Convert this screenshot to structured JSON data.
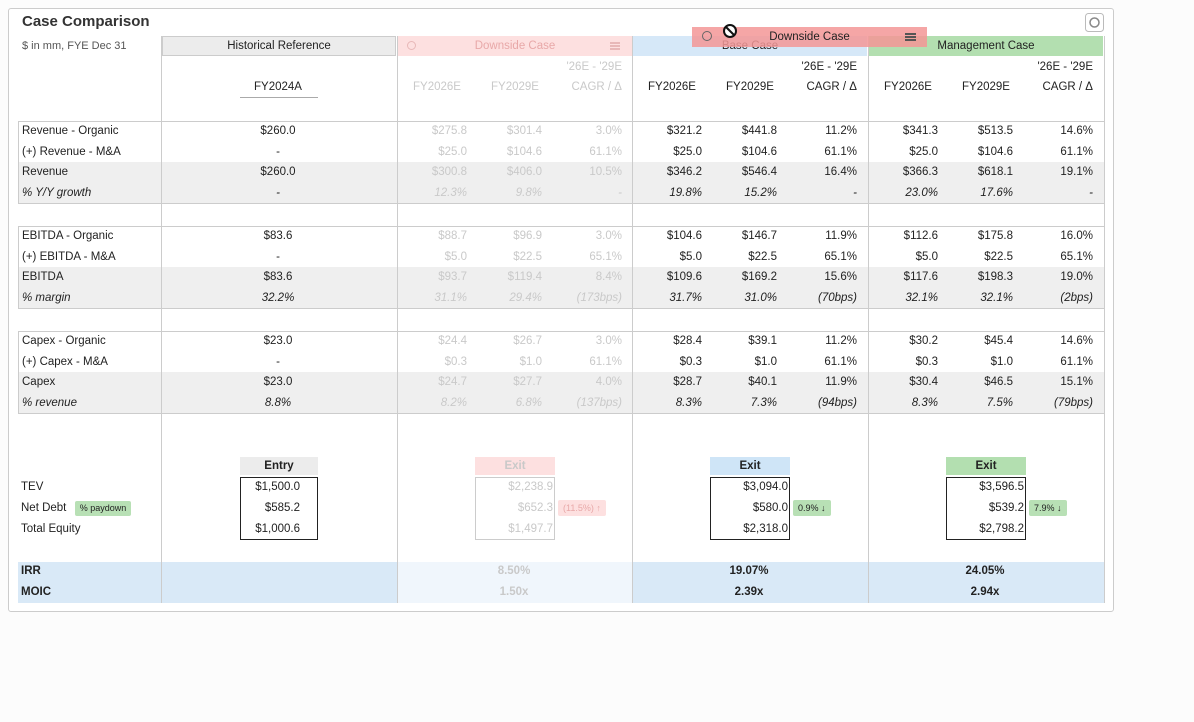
{
  "header": {
    "title": "Case Comparison",
    "subtitle": "$ in mm, FYE Dec 31"
  },
  "row_labels": [
    [
      "Revenue - Organic",
      "(+) Revenue - M&A",
      "Revenue",
      "% Y/Y growth"
    ],
    [
      "EBITDA - Organic",
      "(+) EBITDA - M&A",
      "EBITDA",
      "% margin"
    ],
    [
      "Capex - Organic",
      "(+) Capex - M&A",
      "Capex",
      "% revenue"
    ]
  ],
  "returns_labels": [
    "TEV",
    "Net Debt",
    "Total Equity"
  ],
  "paydown_label": "% paydown",
  "metric_labels": [
    "IRR",
    "MOIC"
  ],
  "historical": {
    "name": "Historical Reference",
    "period": "FY2024A",
    "rows": [
      [
        "$260.0",
        "-",
        "$260.0",
        "-"
      ],
      [
        "$83.6",
        "-",
        "$83.6",
        "32.2%"
      ],
      [
        "$23.0",
        "-",
        "$23.0",
        "8.8%"
      ]
    ],
    "entry": {
      "label": "Entry",
      "values": [
        "$1,500.0",
        "$585.2",
        "$1,000.6"
      ]
    }
  },
  "cases": [
    {
      "name": "Downside Case",
      "range_label": "'26E - '29E",
      "columns": [
        "FY2026E",
        "FY2029E",
        "CAGR / Δ"
      ],
      "rows": [
        [
          [
            "$275.8",
            "$301.4",
            "3.0%"
          ],
          [
            "$25.0",
            "$104.6",
            "61.1%"
          ],
          [
            "$300.8",
            "$406.0",
            "10.5%"
          ],
          [
            "12.3%",
            "9.8%",
            "-"
          ]
        ],
        [
          [
            "$88.7",
            "$96.9",
            "3.0%"
          ],
          [
            "$5.0",
            "$22.5",
            "65.1%"
          ],
          [
            "$93.7",
            "$119.4",
            "8.4%"
          ],
          [
            "31.1%",
            "29.4%",
            "(173bps)"
          ]
        ],
        [
          [
            "$24.4",
            "$26.7",
            "3.0%"
          ],
          [
            "$0.3",
            "$1.0",
            "61.1%"
          ],
          [
            "$24.7",
            "$27.7",
            "4.0%"
          ],
          [
            "8.2%",
            "6.8%",
            "(137bps)"
          ]
        ]
      ],
      "exit": {
        "label": "Exit",
        "values": [
          "$2,238.9",
          "$652.3",
          "$1,497.7"
        ],
        "paydown": "(11.5%) ↑"
      },
      "irr": "8.50%",
      "moic": "1.50x"
    },
    {
      "name": "Base Case",
      "range_label": "'26E - '29E",
      "columns": [
        "FY2026E",
        "FY2029E",
        "CAGR / Δ"
      ],
      "rows": [
        [
          [
            "$321.2",
            "$441.8",
            "11.2%"
          ],
          [
            "$25.0",
            "$104.6",
            "61.1%"
          ],
          [
            "$346.2",
            "$546.4",
            "16.4%"
          ],
          [
            "19.8%",
            "15.2%",
            "-"
          ]
        ],
        [
          [
            "$104.6",
            "$146.7",
            "11.9%"
          ],
          [
            "$5.0",
            "$22.5",
            "65.1%"
          ],
          [
            "$109.6",
            "$169.2",
            "15.6%"
          ],
          [
            "31.7%",
            "31.0%",
            "(70bps)"
          ]
        ],
        [
          [
            "$28.4",
            "$39.1",
            "11.2%"
          ],
          [
            "$0.3",
            "$1.0",
            "61.1%"
          ],
          [
            "$28.7",
            "$40.1",
            "11.9%"
          ],
          [
            "8.3%",
            "7.3%",
            "(94bps)"
          ]
        ]
      ],
      "exit": {
        "label": "Exit",
        "values": [
          "$3,094.0",
          "$580.0",
          "$2,318.0"
        ],
        "paydown": "0.9% ↓"
      },
      "irr": "19.07%",
      "moic": "2.39x"
    },
    {
      "name": "Management Case",
      "range_label": "'26E - '29E",
      "columns": [
        "FY2026E",
        "FY2029E",
        "CAGR / Δ"
      ],
      "rows": [
        [
          [
            "$341.3",
            "$513.5",
            "14.6%"
          ],
          [
            "$25.0",
            "$104.6",
            "61.1%"
          ],
          [
            "$366.3",
            "$618.1",
            "19.1%"
          ],
          [
            "23.0%",
            "17.6%",
            "-"
          ]
        ],
        [
          [
            "$112.6",
            "$175.8",
            "16.0%"
          ],
          [
            "$5.0",
            "$22.5",
            "65.1%"
          ],
          [
            "$117.6",
            "$198.3",
            "19.0%"
          ],
          [
            "32.1%",
            "32.1%",
            "(2bps)"
          ]
        ],
        [
          [
            "$30.2",
            "$45.4",
            "14.6%"
          ],
          [
            "$0.3",
            "$1.0",
            "61.1%"
          ],
          [
            "$30.4",
            "$46.5",
            "15.1%"
          ],
          [
            "8.3%",
            "7.5%",
            "(79bps)"
          ]
        ]
      ],
      "exit": {
        "label": "Exit",
        "values": [
          "$3,596.5",
          "$539.2",
          "$2,798.2"
        ],
        "paydown": "7.9% ↓"
      },
      "irr": "24.05%",
      "moic": "2.94x"
    }
  ],
  "drag_ghost": {
    "name": "Downside Case"
  }
}
